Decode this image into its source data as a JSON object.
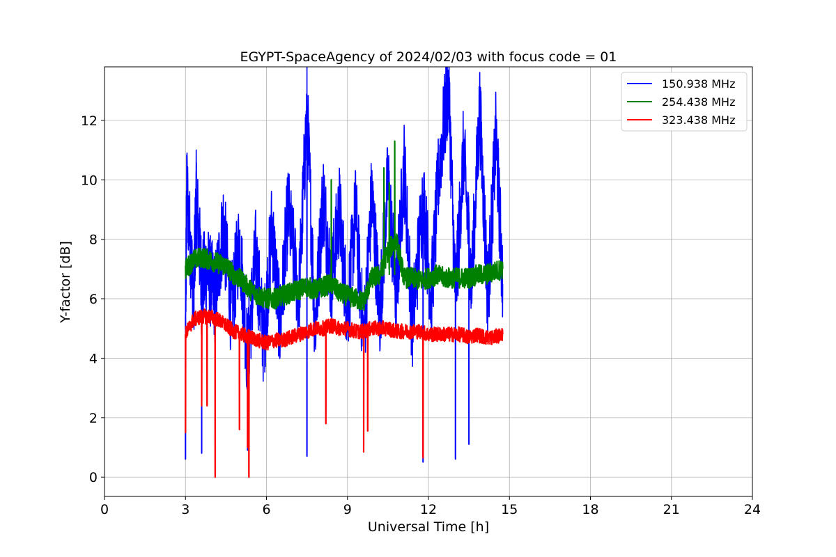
{
  "chart_data": {
    "type": "line",
    "title": "EGYPT-SpaceAgency of 2024/02/03 with focus code = 01",
    "xlabel": "Universal Time [h]",
    "ylabel": "Y-factor [dB]",
    "xlim": [
      0,
      24
    ],
    "ylim": [
      -0.65,
      13.8
    ],
    "xticks": [
      0,
      3,
      6,
      9,
      12,
      15,
      18,
      21,
      24
    ],
    "yticks": [
      0,
      2,
      4,
      6,
      8,
      10,
      12
    ],
    "grid": true,
    "legend_position": "top-right",
    "time_range_hours": [
      3.0,
      14.75
    ],
    "series": [
      {
        "name": "150.938 MHz",
        "color": "#0000ff",
        "x": [
          3.0,
          3.05,
          3.3,
          3.4,
          3.6,
          3.8,
          4.1,
          4.4,
          4.7,
          5.0,
          5.3,
          5.6,
          5.9,
          6.2,
          6.5,
          6.8,
          7.2,
          7.5,
          7.8,
          8.1,
          8.4,
          8.7,
          9.0,
          9.3,
          9.6,
          9.9,
          10.2,
          10.5,
          10.8,
          11.1,
          11.4,
          11.8,
          12.1,
          12.4,
          12.75,
          13.0,
          13.3,
          13.6,
          13.9,
          14.2,
          14.5,
          14.75
        ],
        "values": [
          5.0,
          9.8,
          6.0,
          9.5,
          6.5,
          7.0,
          6.0,
          8.5,
          5.5,
          8.0,
          4.0,
          7.5,
          4.5,
          8.5,
          5.0,
          9.0,
          6.0,
          12.45,
          5.0,
          9.5,
          6.5,
          9.0,
          5.5,
          9.0,
          4.5,
          9.5,
          5.5,
          10.0,
          6.0,
          10.5,
          5.0,
          9.5,
          6.0,
          10.5,
          13.2,
          6.0,
          11.0,
          6.5,
          12.4,
          6.0,
          11.5,
          6.5
        ],
        "spikes_low": [
          [
            3.0,
            0.6
          ],
          [
            3.6,
            0.8
          ],
          [
            5.3,
            0.9
          ],
          [
            7.5,
            0.7
          ],
          [
            11.8,
            0.5
          ],
          [
            13.0,
            0.6
          ],
          [
            13.5,
            1.1
          ]
        ]
      },
      {
        "name": "254.438 MHz",
        "color": "#008000",
        "x": [
          3.0,
          3.3,
          3.6,
          3.9,
          4.2,
          4.5,
          4.8,
          5.1,
          5.4,
          5.7,
          6.0,
          6.3,
          6.6,
          6.9,
          7.2,
          7.5,
          7.8,
          8.1,
          8.4,
          8.7,
          9.0,
          9.3,
          9.6,
          9.9,
          10.2,
          10.5,
          10.8,
          11.1,
          11.4,
          11.7,
          12.0,
          12.3,
          12.6,
          12.9,
          13.2,
          13.5,
          13.8,
          14.1,
          14.4,
          14.75
        ],
        "values": [
          7.0,
          7.3,
          7.4,
          7.3,
          7.2,
          7.1,
          6.8,
          6.6,
          6.3,
          6.1,
          6.0,
          6.0,
          6.1,
          6.2,
          6.3,
          6.4,
          6.3,
          6.4,
          6.5,
          6.2,
          6.1,
          6.0,
          5.9,
          6.7,
          6.8,
          7.6,
          8.0,
          6.7,
          6.7,
          6.6,
          6.7,
          6.8,
          6.7,
          6.7,
          6.7,
          6.7,
          6.8,
          6.8,
          6.9,
          7.0
        ],
        "spikes_high": [
          [
            8.4,
            10.0
          ],
          [
            10.35,
            10.4
          ],
          [
            10.55,
            9.9
          ],
          [
            10.75,
            11.3
          ]
        ]
      },
      {
        "name": "323.438 MHz",
        "color": "#ff0000",
        "x": [
          3.0,
          3.3,
          3.6,
          3.9,
          4.2,
          4.5,
          4.8,
          5.1,
          5.4,
          5.7,
          6.0,
          6.3,
          6.6,
          6.9,
          7.2,
          7.5,
          7.8,
          8.1,
          8.4,
          8.7,
          9.0,
          9.3,
          9.6,
          9.9,
          10.2,
          10.5,
          10.8,
          11.1,
          11.4,
          11.7,
          12.0,
          12.3,
          12.6,
          12.9,
          13.2,
          13.5,
          13.8,
          14.1,
          14.4,
          14.75
        ],
        "values": [
          4.8,
          5.3,
          5.4,
          5.4,
          5.3,
          5.1,
          4.9,
          4.8,
          4.7,
          4.6,
          4.5,
          4.6,
          4.6,
          4.7,
          4.8,
          4.9,
          5.0,
          5.0,
          5.1,
          5.0,
          5.0,
          4.9,
          4.9,
          5.0,
          5.0,
          5.0,
          4.9,
          4.9,
          4.9,
          4.9,
          4.8,
          4.8,
          4.8,
          4.8,
          4.8,
          4.7,
          4.8,
          4.7,
          4.7,
          4.8
        ],
        "spikes_low": [
          [
            3.0,
            1.5
          ],
          [
            3.6,
            2.4
          ],
          [
            3.8,
            2.4
          ],
          [
            4.1,
            0.0
          ],
          [
            5.0,
            1.6
          ],
          [
            5.3,
            1.0
          ],
          [
            5.35,
            0.0
          ],
          [
            8.2,
            1.8
          ],
          [
            9.6,
            0.85
          ],
          [
            9.75,
            1.55
          ],
          [
            11.8,
            0.65
          ]
        ]
      }
    ]
  }
}
